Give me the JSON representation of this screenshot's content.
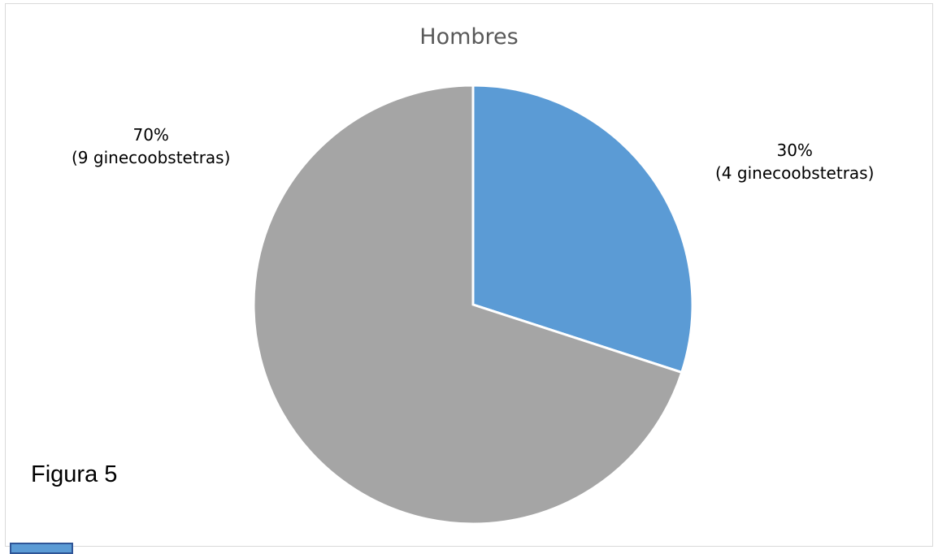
{
  "chart_data": {
    "type": "pie",
    "title": "Hombres",
    "slices": [
      {
        "value": 30,
        "percent_label": "30%",
        "detail_label": "(4 ginecoobstetras)",
        "color": "#5b9bd5"
      },
      {
        "value": 70,
        "percent_label": "70%",
        "detail_label": "(9 ginecoobstetras)",
        "color": "#a5a5a5"
      }
    ],
    "legend": "none"
  },
  "caption": "Figura 5"
}
